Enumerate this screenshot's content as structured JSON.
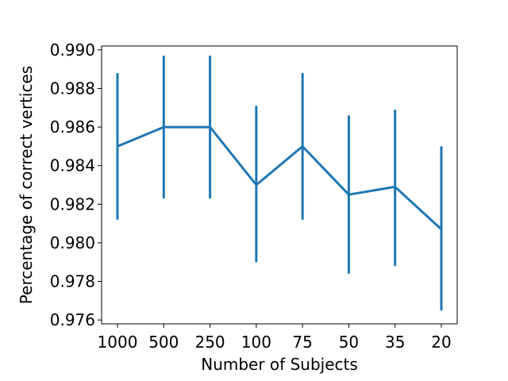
{
  "chart_data": {
    "type": "line",
    "title": "",
    "xlabel": "Number of Subjects",
    "ylabel": "Percentage of correct vertices",
    "categories": [
      "1000",
      "500",
      "250",
      "100",
      "75",
      "50",
      "35",
      "20"
    ],
    "series": [
      {
        "values": [
          0.985,
          0.986,
          0.986,
          0.983,
          0.985,
          0.9825,
          0.9829,
          0.9807
        ],
        "err_low": [
          0.9812,
          0.9823,
          0.9823,
          0.979,
          0.9812,
          0.9784,
          0.9788,
          0.9765
        ],
        "err_high": [
          0.9888,
          0.9897,
          0.9897,
          0.9871,
          0.9888,
          0.9866,
          0.9869,
          0.985
        ],
        "color": "#1f77b4"
      }
    ],
    "ylim": [
      0.9758,
      0.9902
    ],
    "yticks": [
      "0.976",
      "0.978",
      "0.980",
      "0.982",
      "0.984",
      "0.986",
      "0.988",
      "0.990"
    ],
    "grid": false,
    "legend": "none"
  }
}
